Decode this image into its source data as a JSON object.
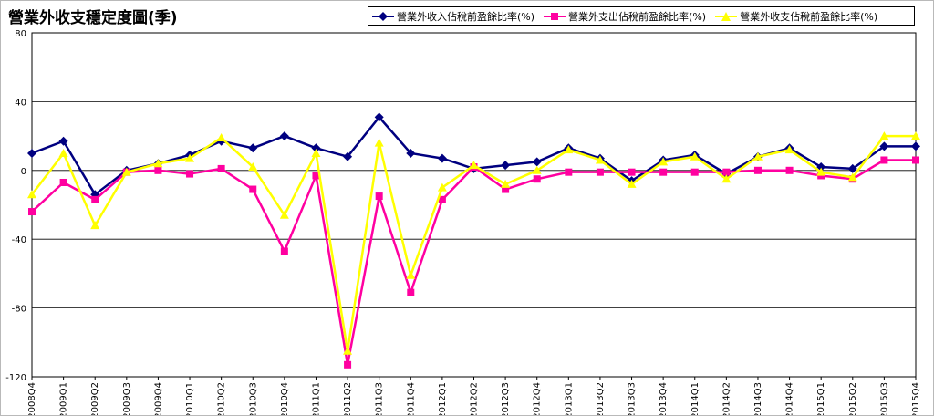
{
  "chart_data": {
    "type": "line",
    "title": "營業外收支穩定度圖(季)",
    "categories": [
      "2008Q4",
      "2009Q1",
      "2009Q2",
      "2009Q3",
      "2009Q4",
      "2010Q1",
      "2010Q2",
      "2010Q3",
      "2010Q4",
      "2011Q1",
      "2011Q2",
      "2011Q3",
      "2011Q4",
      "2012Q1",
      "2012Q2",
      "2012Q3",
      "2012Q4",
      "2013Q1",
      "2013Q2",
      "2013Q3",
      "2013Q4",
      "2014Q1",
      "2014Q2",
      "2014Q3",
      "2014Q4",
      "2015Q1",
      "2015Q2",
      "2015Q3",
      "2015Q4"
    ],
    "ylim": [
      -120,
      80
    ],
    "yticks": [
      -120,
      -80,
      -40,
      0,
      40,
      80
    ],
    "grid": true,
    "legend_position": "top-right",
    "series": [
      {
        "name": "營業外收入佔稅前盈餘比率(%)",
        "color": "#000080",
        "marker": "diamond",
        "values": [
          10,
          17,
          -14,
          0,
          4,
          9,
          17,
          13,
          20,
          13,
          8,
          31,
          10,
          7,
          1,
          3,
          5,
          13,
          7,
          -6,
          6,
          9,
          -2,
          8,
          13,
          2,
          1,
          14,
          14
        ]
      },
      {
        "name": "營業外支出佔稅前盈餘比率(%)",
        "color": "#ff00a0",
        "marker": "square",
        "values": [
          -24,
          -7,
          -17,
          -1,
          0,
          -2,
          1,
          -11,
          -47,
          -3,
          -113,
          -15,
          -71,
          -17,
          2,
          -11,
          -5,
          -1,
          -1,
          -1,
          -1,
          -1,
          -1,
          0,
          0,
          -3,
          -5,
          6,
          6
        ]
      },
      {
        "name": "營業外收支佔稅前盈餘比率(%)",
        "color": "#ffff00",
        "marker": "triangle",
        "values": [
          -14,
          10,
          -32,
          -1,
          4,
          7,
          19,
          2,
          -26,
          10,
          -105,
          16,
          -61,
          -10,
          3,
          -8,
          0,
          12,
          6,
          -8,
          5,
          8,
          -5,
          8,
          12,
          -1,
          -4,
          20,
          20
        ]
      }
    ]
  }
}
